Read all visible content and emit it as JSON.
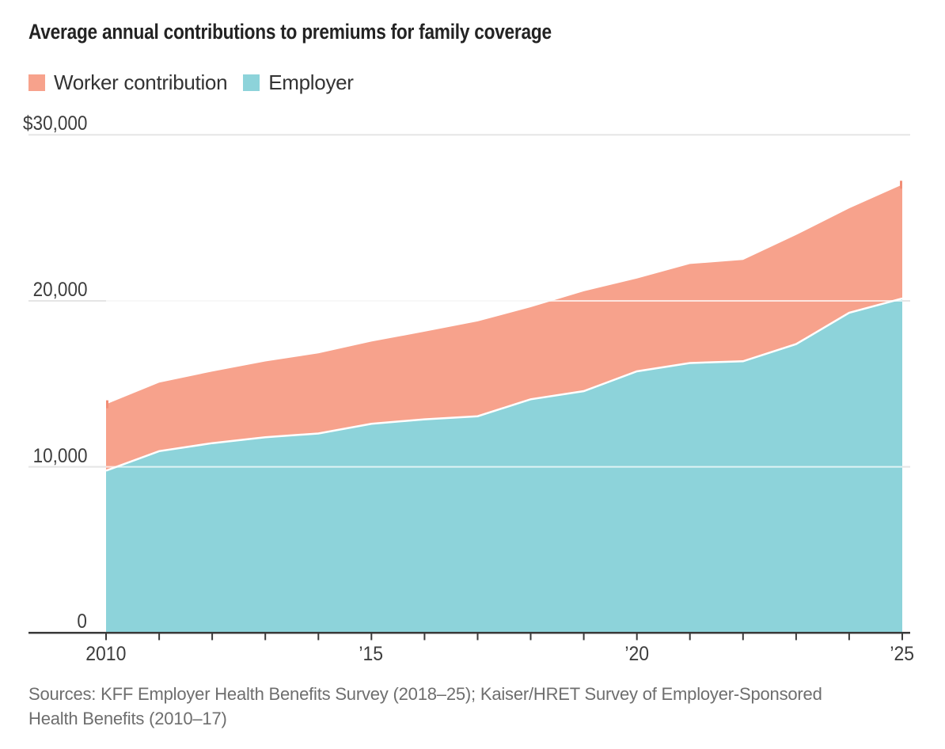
{
  "chart_data": {
    "type": "area",
    "stacked": true,
    "title": "Average annual contributions to premiums for family coverage",
    "x": [
      2010,
      2011,
      2012,
      2013,
      2014,
      2015,
      2016,
      2017,
      2018,
      2019,
      2020,
      2021,
      2022,
      2023,
      2024,
      2025
    ],
    "series": [
      {
        "name": "Worker contribution",
        "color": "#F7A28C",
        "values": [
          3997,
          4129,
          4316,
          4565,
          4823,
          4955,
          5277,
          5714,
          5547,
          6015,
          5588,
          5969,
          6106,
          6575,
          6296,
          6850
        ]
      },
      {
        "name": "Employer",
        "color": "#8DD3DA",
        "values": [
          9773,
          10944,
          11429,
          11786,
          12011,
          12591,
          12865,
          13049,
          14069,
          14561,
          15754,
          16253,
          16357,
          17393,
          19276,
          20143
        ]
      }
    ],
    "ylim": [
      0,
      30000
    ],
    "ylabel": "",
    "xlabel": "",
    "grid": "horizontal",
    "legend_position": "top-left",
    "y_ticks": [
      {
        "value": 30000,
        "label": "$30,000"
      },
      {
        "value": 20000,
        "label": "20,000"
      },
      {
        "value": 10000,
        "label": "10,000"
      },
      {
        "value": 0,
        "label": "0"
      }
    ],
    "x_ticks_labeled": [
      {
        "year": 2010,
        "label": "2010"
      },
      {
        "year": 2015,
        "label": "’15"
      },
      {
        "year": 2020,
        "label": "’20"
      },
      {
        "year": 2025,
        "label": "’25"
      }
    ],
    "x_minor_tick_every_years": 1
  },
  "legend": {
    "items": [
      {
        "label": "Worker contribution",
        "color": "#F7A28C"
      },
      {
        "label": "Employer",
        "color": "#8DD3DA"
      }
    ]
  },
  "sources": {
    "line1": "Sources: KFF Employer Health Benefits Survey (2018–25); Kaiser/HRET Survey of Employer-Sponsored",
    "line2": "Health Benefits (2010–17)"
  },
  "colors": {
    "worker_area": "#F7A28C",
    "employer_area": "#8DD3DA",
    "series_endpoint_marker": "#F28E76",
    "divider_stroke": "#FFFFFF",
    "gridline": "#E5E5E5",
    "gridline_over_area": "rgba(255,255,255,0.72)",
    "axis": "#3A3A3A",
    "title_text": "#232323",
    "label_text": "#3D3D3D",
    "sources_text": "#6E6E6E",
    "background": "#FFFFFF"
  }
}
